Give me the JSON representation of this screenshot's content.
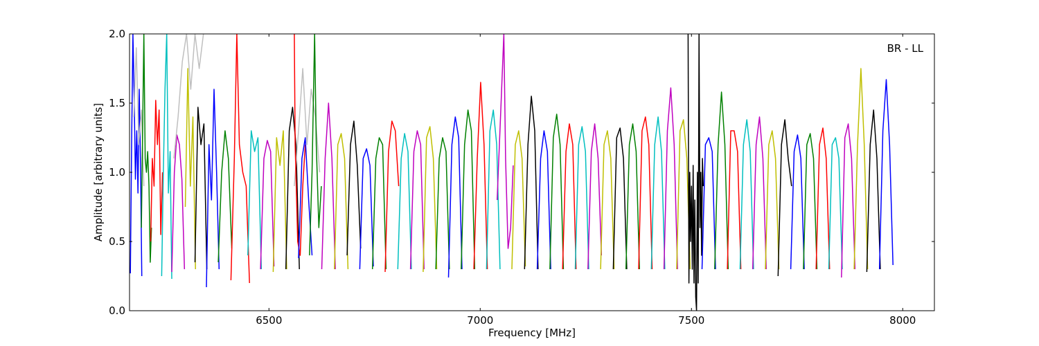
{
  "chart_data": {
    "type": "line",
    "title": "",
    "xlabel": "Frequency [MHz]",
    "ylabel": "Amplitude [arbitrary units]",
    "annotation": "BR - LL",
    "xlim": [
      6170,
      8075
    ],
    "ylim": [
      0,
      2.0
    ],
    "x_ticks": [
      6500,
      7000,
      7500,
      8000
    ],
    "x_tick_labels": [
      "6500",
      "7000",
      "7500",
      "8000"
    ],
    "y_ticks": [
      0.0,
      0.5,
      1.0,
      1.5,
      2.0
    ],
    "y_tick_labels": [
      "0.0",
      "0.5",
      "1.0",
      "1.5",
      "2.0"
    ],
    "grid": false,
    "legend": "none",
    "color_cycle": [
      "#0000ff",
      "#008000",
      "#ff0000",
      "#00bfbf",
      "#bf00bf",
      "#bfbf00",
      "#000000"
    ],
    "flagged_color": "#bfbfbf",
    "channels_per_window": 40,
    "series": [
      {
        "color": "#0000ff",
        "x": [
          6172,
          6175,
          6178,
          6181,
          6184,
          6187,
          6190,
          6193,
          6196,
          6199
        ],
        "y": [
          0.27,
          1.2,
          2.0,
          1.55,
          0.95,
          1.3,
          0.85,
          1.6,
          1.05,
          0.25
        ]
      },
      {
        "color": "#bfbfbf",
        "x": [
          6180,
          6186,
          6192,
          6198,
          6204
        ],
        "y": [
          1.4,
          1.9,
          1.2,
          1.45,
          0.9
        ]
      },
      {
        "color": "#008000",
        "x": [
          6198,
          6201,
          6204,
          6207,
          6210,
          6213,
          6216,
          6219,
          6222
        ],
        "y": [
          0.6,
          1.3,
          2.0,
          1.1,
          1.0,
          1.15,
          0.9,
          0.35,
          0.6
        ]
      },
      {
        "color": "#ff0000",
        "x": [
          6220,
          6224,
          6228,
          6232,
          6236,
          6240,
          6244,
          6248
        ],
        "y": [
          0.5,
          1.1,
          0.9,
          1.52,
          1.2,
          1.45,
          0.55,
          1.0
        ]
      },
      {
        "color": "#00bfbf",
        "x": [
          6246,
          6250,
          6254,
          6258,
          6262,
          6266,
          6270
        ],
        "y": [
          0.25,
          1.0,
          1.6,
          2.0,
          0.85,
          1.15,
          0.23
        ]
      },
      {
        "color": "#bf00bf",
        "x": [
          6270,
          6276,
          6282,
          6288,
          6294,
          6300
        ],
        "y": [
          0.28,
          1.0,
          1.27,
          1.2,
          0.95,
          0.3
        ]
      },
      {
        "color": "#bfbfbf",
        "x": [
          6275,
          6285,
          6295,
          6305,
          6315,
          6325,
          6335,
          6345
        ],
        "y": [
          1.1,
          1.4,
          1.8,
          2.0,
          1.6,
          2.0,
          1.75,
          2.0
        ]
      },
      {
        "color": "#bfbf00",
        "x": [
          6302,
          6308,
          6314,
          6320,
          6326
        ],
        "y": [
          0.75,
          1.75,
          0.9,
          1.4,
          0.3
        ]
      },
      {
        "color": "#000000",
        "x": [
          6325,
          6332,
          6339,
          6346,
          6353
        ],
        "y": [
          0.35,
          1.47,
          1.2,
          1.35,
          0.3
        ]
      },
      {
        "color": "#0000ff",
        "x": [
          6352,
          6358,
          6364,
          6370,
          6376,
          6382
        ],
        "y": [
          0.17,
          1.2,
          0.8,
          1.6,
          1.0,
          0.3
        ]
      },
      {
        "color": "#008000",
        "x": [
          6380,
          6388,
          6396,
          6404,
          6412
        ],
        "y": [
          0.35,
          1.0,
          1.3,
          1.1,
          0.45
        ]
      },
      {
        "color": "#ff0000",
        "x": [
          6410,
          6418,
          6424,
          6430,
          6438,
          6446,
          6454
        ],
        "y": [
          0.22,
          1.1,
          2.0,
          1.2,
          1.0,
          0.9,
          0.2
        ]
      },
      {
        "color": "#00bfbf",
        "x": [
          6450,
          6458,
          6466,
          6474,
          6482
        ],
        "y": [
          0.4,
          1.3,
          1.15,
          1.25,
          0.3
        ]
      },
      {
        "color": "#bf00bf",
        "x": [
          6480,
          6488,
          6496,
          6504,
          6512
        ],
        "y": [
          0.3,
          1.1,
          1.23,
          1.15,
          0.32
        ]
      },
      {
        "color": "#bfbf00",
        "x": [
          6510,
          6518,
          6526,
          6534,
          6542
        ],
        "y": [
          0.28,
          1.25,
          1.05,
          1.3,
          0.3
        ]
      },
      {
        "color": "#000000",
        "x": [
          6540,
          6548,
          6556,
          6564,
          6572
        ],
        "y": [
          0.3,
          1.3,
          1.47,
          1.2,
          0.3
        ]
      },
      {
        "color": "#bfbfbf",
        "x": [
          6560,
          6570,
          6580,
          6590,
          6600,
          6610,
          6620
        ],
        "y": [
          0.9,
          1.3,
          1.75,
          1.2,
          1.6,
          1.4,
          1.0
        ]
      },
      {
        "color": "#ff0000",
        "x": [
          6560,
          6562,
          6568,
          6574,
          6580,
          6586
        ],
        "y": [
          2.0,
          1.2,
          0.5,
          0.4,
          0.9,
          1.2
        ]
      },
      {
        "color": "#0000ff",
        "x": [
          6570,
          6578,
          6586,
          6594,
          6602
        ],
        "y": [
          0.38,
          1.1,
          1.25,
          0.8,
          0.4
        ]
      },
      {
        "color": "#008000",
        "x": [
          6596,
          6602,
          6608,
          6612,
          6618,
          6624
        ],
        "y": [
          0.4,
          1.0,
          2.0,
          1.2,
          0.6,
          0.9
        ]
      },
      {
        "color": "#bf00bf",
        "x": [
          6625,
          6633,
          6641,
          6649,
          6657
        ],
        "y": [
          0.3,
          1.1,
          1.5,
          1.1,
          0.3
        ]
      },
      {
        "color": "#bfbf00",
        "x": [
          6655,
          6663,
          6671,
          6679,
          6687
        ],
        "y": [
          0.3,
          1.2,
          1.28,
          1.1,
          0.3
        ]
      },
      {
        "color": "#000000",
        "x": [
          6685,
          6693,
          6701,
          6709,
          6717
        ],
        "y": [
          0.4,
          1.2,
          1.37,
          1.05,
          0.45
        ]
      },
      {
        "color": "#0000ff",
        "x": [
          6715,
          6723,
          6731,
          6739,
          6747
        ],
        "y": [
          0.3,
          1.1,
          1.17,
          1.05,
          0.32
        ]
      },
      {
        "color": "#008000",
        "x": [
          6745,
          6753,
          6761,
          6769,
          6777
        ],
        "y": [
          0.3,
          1.1,
          1.25,
          1.2,
          0.3
        ]
      },
      {
        "color": "#ff0000",
        "x": [
          6775,
          6783,
          6791,
          6799,
          6807
        ],
        "y": [
          0.28,
          1.15,
          1.37,
          1.3,
          0.9
        ]
      },
      {
        "color": "#00bfbf",
        "x": [
          6805,
          6813,
          6821,
          6829,
          6837
        ],
        "y": [
          0.3,
          1.1,
          1.28,
          1.15,
          0.3
        ]
      },
      {
        "color": "#bf00bf",
        "x": [
          6835,
          6843,
          6851,
          6859,
          6867
        ],
        "y": [
          0.3,
          1.15,
          1.3,
          1.2,
          0.3
        ]
      },
      {
        "color": "#bfbf00",
        "x": [
          6865,
          6873,
          6881,
          6889,
          6897
        ],
        "y": [
          0.28,
          1.25,
          1.33,
          1.1,
          0.3
        ]
      },
      {
        "color": "#008000",
        "x": [
          6895,
          6903,
          6911,
          6919,
          6927
        ],
        "y": [
          0.3,
          1.1,
          1.25,
          1.15,
          0.3
        ]
      },
      {
        "color": "#0000ff",
        "x": [
          6925,
          6933,
          6941,
          6949,
          6957
        ],
        "y": [
          0.24,
          1.2,
          1.4,
          1.25,
          0.3
        ]
      },
      {
        "color": "#008000",
        "x": [
          6955,
          6963,
          6971,
          6979,
          6987
        ],
        "y": [
          0.3,
          1.2,
          1.45,
          1.3,
          0.3
        ]
      },
      {
        "color": "#ff0000",
        "x": [
          6985,
          6993,
          7001,
          7009,
          7017
        ],
        "y": [
          0.3,
          1.1,
          1.65,
          1.2,
          0.3
        ]
      },
      {
        "color": "#00bfbf",
        "x": [
          7015,
          7023,
          7031,
          7039,
          7047
        ],
        "y": [
          0.3,
          1.3,
          1.45,
          1.2,
          0.3
        ]
      },
      {
        "color": "#bf00bf",
        "x": [
          7040,
          7048,
          7056,
          7060,
          7066,
          7072,
          7078
        ],
        "y": [
          0.8,
          1.4,
          2.0,
          1.1,
          0.45,
          0.6,
          1.05
        ]
      },
      {
        "color": "#bfbf00",
        "x": [
          7075,
          7083,
          7091,
          7099,
          7107
        ],
        "y": [
          0.3,
          1.2,
          1.3,
          1.1,
          0.32
        ]
      },
      {
        "color": "#000000",
        "x": [
          7105,
          7113,
          7121,
          7129,
          7137
        ],
        "y": [
          0.3,
          1.2,
          1.55,
          1.3,
          0.3
        ]
      },
      {
        "color": "#0000ff",
        "x": [
          7135,
          7143,
          7151,
          7159,
          7167
        ],
        "y": [
          0.3,
          1.1,
          1.3,
          1.15,
          0.3
        ]
      },
      {
        "color": "#008000",
        "x": [
          7165,
          7173,
          7181,
          7189,
          7197
        ],
        "y": [
          0.3,
          1.25,
          1.42,
          1.2,
          0.3
        ]
      },
      {
        "color": "#ff0000",
        "x": [
          7195,
          7203,
          7211,
          7219,
          7227
        ],
        "y": [
          0.3,
          1.15,
          1.35,
          1.2,
          0.3
        ]
      },
      {
        "color": "#00bfbf",
        "x": [
          7225,
          7233,
          7241,
          7249,
          7257
        ],
        "y": [
          0.3,
          1.2,
          1.33,
          1.15,
          0.3
        ]
      },
      {
        "color": "#bf00bf",
        "x": [
          7255,
          7263,
          7271,
          7279,
          7287
        ],
        "y": [
          0.3,
          1.15,
          1.35,
          1.1,
          0.4
        ]
      },
      {
        "color": "#bfbf00",
        "x": [
          7285,
          7293,
          7301,
          7309,
          7317
        ],
        "y": [
          0.3,
          1.2,
          1.3,
          1.1,
          0.3
        ]
      },
      {
        "color": "#000000",
        "x": [
          7315,
          7323,
          7331,
          7339,
          7347
        ],
        "y": [
          0.3,
          1.25,
          1.32,
          1.1,
          0.3
        ]
      },
      {
        "color": "#008000",
        "x": [
          7345,
          7353,
          7361,
          7369,
          7377
        ],
        "y": [
          0.3,
          1.2,
          1.35,
          1.15,
          0.3
        ]
      },
      {
        "color": "#ff0000",
        "x": [
          7375,
          7383,
          7391,
          7399,
          7407
        ],
        "y": [
          0.3,
          1.3,
          1.4,
          1.2,
          0.3
        ]
      },
      {
        "color": "#00bfbf",
        "x": [
          7405,
          7413,
          7421,
          7429,
          7437
        ],
        "y": [
          0.3,
          1.2,
          1.4,
          1.15,
          0.3
        ]
      },
      {
        "color": "#bf00bf",
        "x": [
          7435,
          7443,
          7451,
          7459,
          7467
        ],
        "y": [
          0.3,
          1.3,
          1.61,
          1.2,
          0.3
        ]
      },
      {
        "color": "#bfbf00",
        "x": [
          7465,
          7473,
          7481,
          7489,
          7497
        ],
        "y": [
          0.3,
          1.3,
          1.38,
          1.1,
          0.3
        ]
      },
      {
        "color": "#000000",
        "x": [
          7492,
          7494,
          7496,
          7498,
          7500,
          7502,
          7504,
          7506,
          7508,
          7510,
          7512,
          7514,
          7516,
          7518,
          7520,
          7522,
          7524,
          7526,
          7528
        ],
        "y": [
          2.0,
          0.2,
          1.0,
          0.5,
          0.9,
          0.3,
          1.05,
          0.2,
          0.8,
          0.1,
          0.0,
          1.0,
          0.2,
          2.0,
          0.6,
          1.0,
          0.4,
          1.1,
          0.9
        ]
      },
      {
        "color": "#0000ff",
        "x": [
          7525,
          7533,
          7541,
          7549,
          7557
        ],
        "y": [
          0.3,
          1.2,
          1.25,
          1.15,
          0.3
        ]
      },
      {
        "color": "#008000",
        "x": [
          7555,
          7563,
          7571,
          7579,
          7587
        ],
        "y": [
          0.3,
          1.2,
          1.58,
          1.2,
          0.3
        ]
      },
      {
        "color": "#ff0000",
        "x": [
          7585,
          7593,
          7601,
          7609,
          7617
        ],
        "y": [
          0.3,
          1.3,
          1.3,
          1.15,
          0.3
        ]
      },
      {
        "color": "#00bfbf",
        "x": [
          7615,
          7623,
          7631,
          7639,
          7647
        ],
        "y": [
          0.3,
          1.2,
          1.38,
          1.15,
          0.3
        ]
      },
      {
        "color": "#bf00bf",
        "x": [
          7645,
          7653,
          7661,
          7669,
          7677
        ],
        "y": [
          0.3,
          1.2,
          1.4,
          1.1,
          0.3
        ]
      },
      {
        "color": "#bfbf00",
        "x": [
          7675,
          7683,
          7691,
          7699,
          7707
        ],
        "y": [
          0.3,
          1.2,
          1.3,
          1.1,
          0.3
        ]
      },
      {
        "color": "#000000",
        "x": [
          7705,
          7713,
          7721,
          7729,
          7737
        ],
        "y": [
          0.25,
          1.2,
          1.38,
          1.1,
          0.9
        ]
      },
      {
        "color": "#0000ff",
        "x": [
          7735,
          7743,
          7751,
          7759,
          7767
        ],
        "y": [
          0.3,
          1.15,
          1.27,
          1.1,
          0.3
        ]
      },
      {
        "color": "#008000",
        "x": [
          7765,
          7773,
          7781,
          7789,
          7797
        ],
        "y": [
          0.3,
          1.2,
          1.28,
          1.1,
          0.3
        ]
      },
      {
        "color": "#ff0000",
        "x": [
          7795,
          7803,
          7811,
          7819,
          7827
        ],
        "y": [
          0.3,
          1.2,
          1.32,
          1.1,
          0.3
        ]
      },
      {
        "color": "#00bfbf",
        "x": [
          7825,
          7833,
          7841,
          7849,
          7857
        ],
        "y": [
          0.3,
          1.2,
          1.25,
          1.1,
          0.3
        ]
      },
      {
        "color": "#bf00bf",
        "x": [
          7855,
          7863,
          7871,
          7879,
          7887
        ],
        "y": [
          0.24,
          1.25,
          1.35,
          1.1,
          0.3
        ]
      },
      {
        "color": "#bfbf00",
        "x": [
          7885,
          7893,
          7901,
          7909,
          7917
        ],
        "y": [
          0.3,
          1.2,
          1.75,
          1.2,
          0.3
        ]
      },
      {
        "color": "#000000",
        "x": [
          7915,
          7923,
          7931,
          7939,
          7947
        ],
        "y": [
          0.28,
          1.2,
          1.45,
          1.1,
          0.3
        ]
      },
      {
        "color": "#0000ff",
        "x": [
          7945,
          7953,
          7961,
          7969,
          7977
        ],
        "y": [
          0.3,
          1.3,
          1.67,
          1.2,
          0.33
        ]
      }
    ]
  }
}
